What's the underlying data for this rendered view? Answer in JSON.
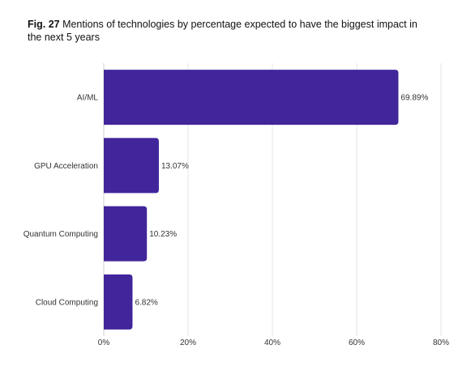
{
  "title": {
    "prefix": "Fig. 27",
    "text": " Mentions of technologies by percentage expected to have the biggest impact in the next 5 years"
  },
  "colors": {
    "bar": "#41259a",
    "grid": "#e4e4e4",
    "text": "#333333"
  },
  "chart_data": {
    "type": "bar",
    "orientation": "horizontal",
    "categories": [
      "AI/ML",
      "GPU Acceleration",
      "Quantum Computing",
      "Cloud Computing"
    ],
    "values": [
      69.89,
      13.07,
      10.23,
      6.82
    ],
    "value_labels": [
      "69.89%",
      "13.07%",
      "10.23%",
      "6.82%"
    ],
    "xlim": [
      0,
      80
    ],
    "xticks": [
      0,
      20,
      40,
      60,
      80
    ],
    "xtick_labels": [
      "0%",
      "20%",
      "40%",
      "60%",
      "80%"
    ],
    "grid": true,
    "legend": false
  }
}
